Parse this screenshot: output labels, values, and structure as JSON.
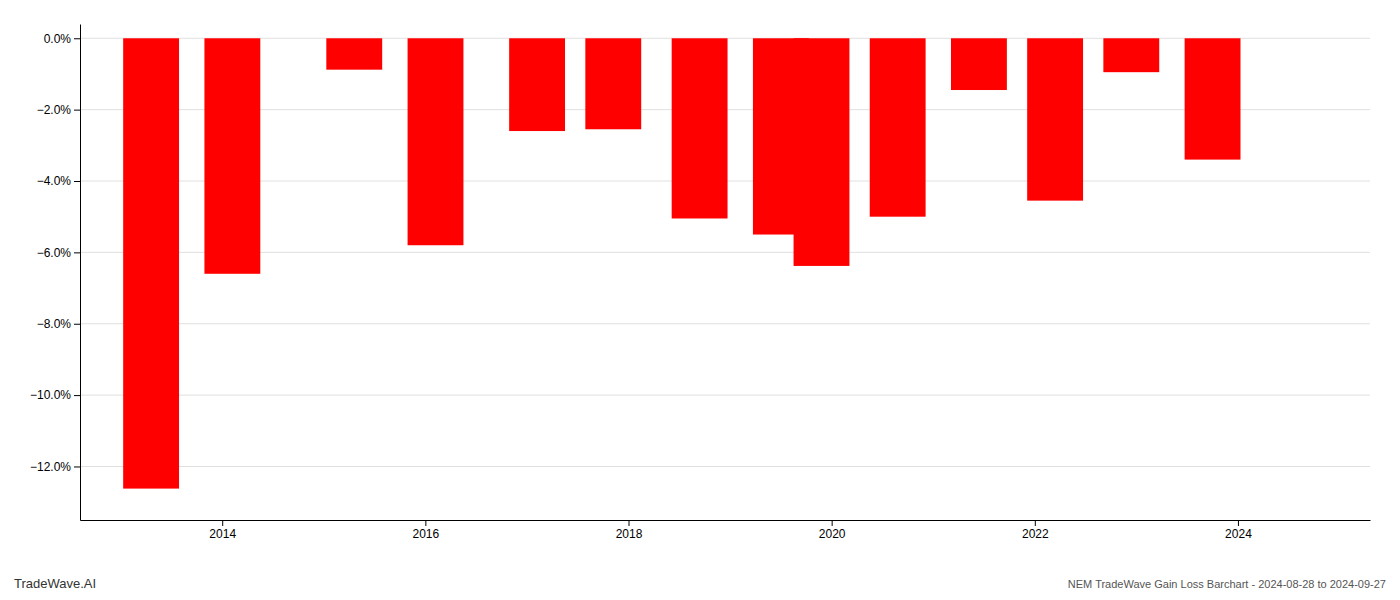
{
  "chart_data": {
    "type": "bar",
    "title": "NEM TradeWave Gain Loss Barchart - 2024-08-28 to 2024-09-27",
    "annotations": [
      "TradeWave.AI"
    ],
    "x": [
      2013.3,
      2014.1,
      2015.3,
      2016.1,
      2017.1,
      2017.85,
      2018.7,
      2019.5,
      2019.9,
      2020.65,
      2021.45,
      2022.2,
      2022.95,
      2023.75
    ],
    "values": [
      -12.62,
      -6.6,
      -0.88,
      -5.8,
      -2.6,
      -2.55,
      -5.05,
      -5.5,
      -6.38,
      -5.0,
      -1.45,
      -4.55,
      -0.95,
      -3.4
    ],
    "color": "#ff0000",
    "xlim": [
      2012.6,
      2025.3
    ],
    "xticks": [
      2014,
      2016,
      2018,
      2020,
      2022,
      2024
    ],
    "ylim": [
      -13.5,
      0.4
    ],
    "yticks": [
      {
        "value": 0.0,
        "label": "0.0%"
      },
      {
        "value": -2.0,
        "label": "−2.0%"
      },
      {
        "value": -4.0,
        "label": "−4.0%"
      },
      {
        "value": -6.0,
        "label": "−6.0%"
      },
      {
        "value": -8.0,
        "label": "−8.0%"
      },
      {
        "value": -10.0,
        "label": "−10.0%"
      },
      {
        "value": -12.0,
        "label": "−12.0%"
      }
    ],
    "grid": true
  }
}
